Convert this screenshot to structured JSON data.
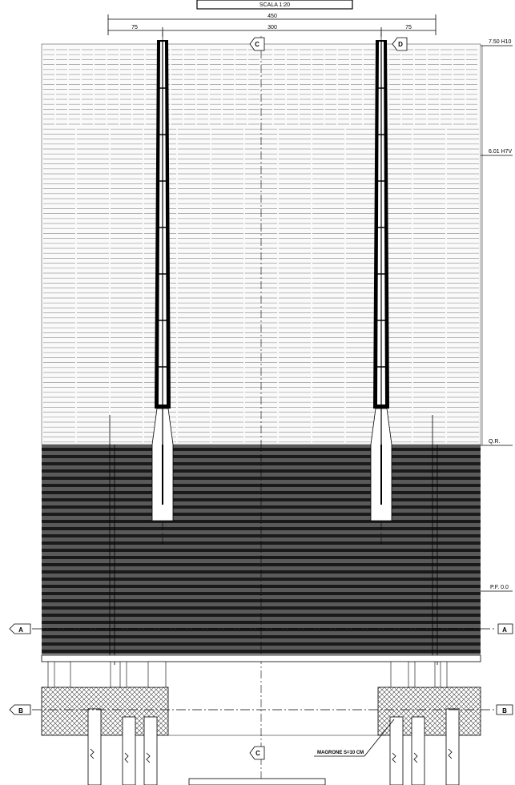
{
  "drawing": {
    "title_top": "SCALA 1:20",
    "dimensions": {
      "overall": "450",
      "inner": "300",
      "left_offset": "75",
      "right_offset": "75"
    },
    "axis_labels": {
      "axis_c_top": "C",
      "axis_d_top": "D",
      "axis_c_bottom": "C"
    },
    "levels": {
      "top": "7.50 H10",
      "mid": "6.01 H7V",
      "ground": "Q.R.",
      "floor": "P.F. 0.0"
    },
    "section_marks": {
      "a_left": "A",
      "a_right": "A",
      "b_left": "B",
      "b_right": "B"
    },
    "note": "MAGRONE S=10 CM"
  }
}
